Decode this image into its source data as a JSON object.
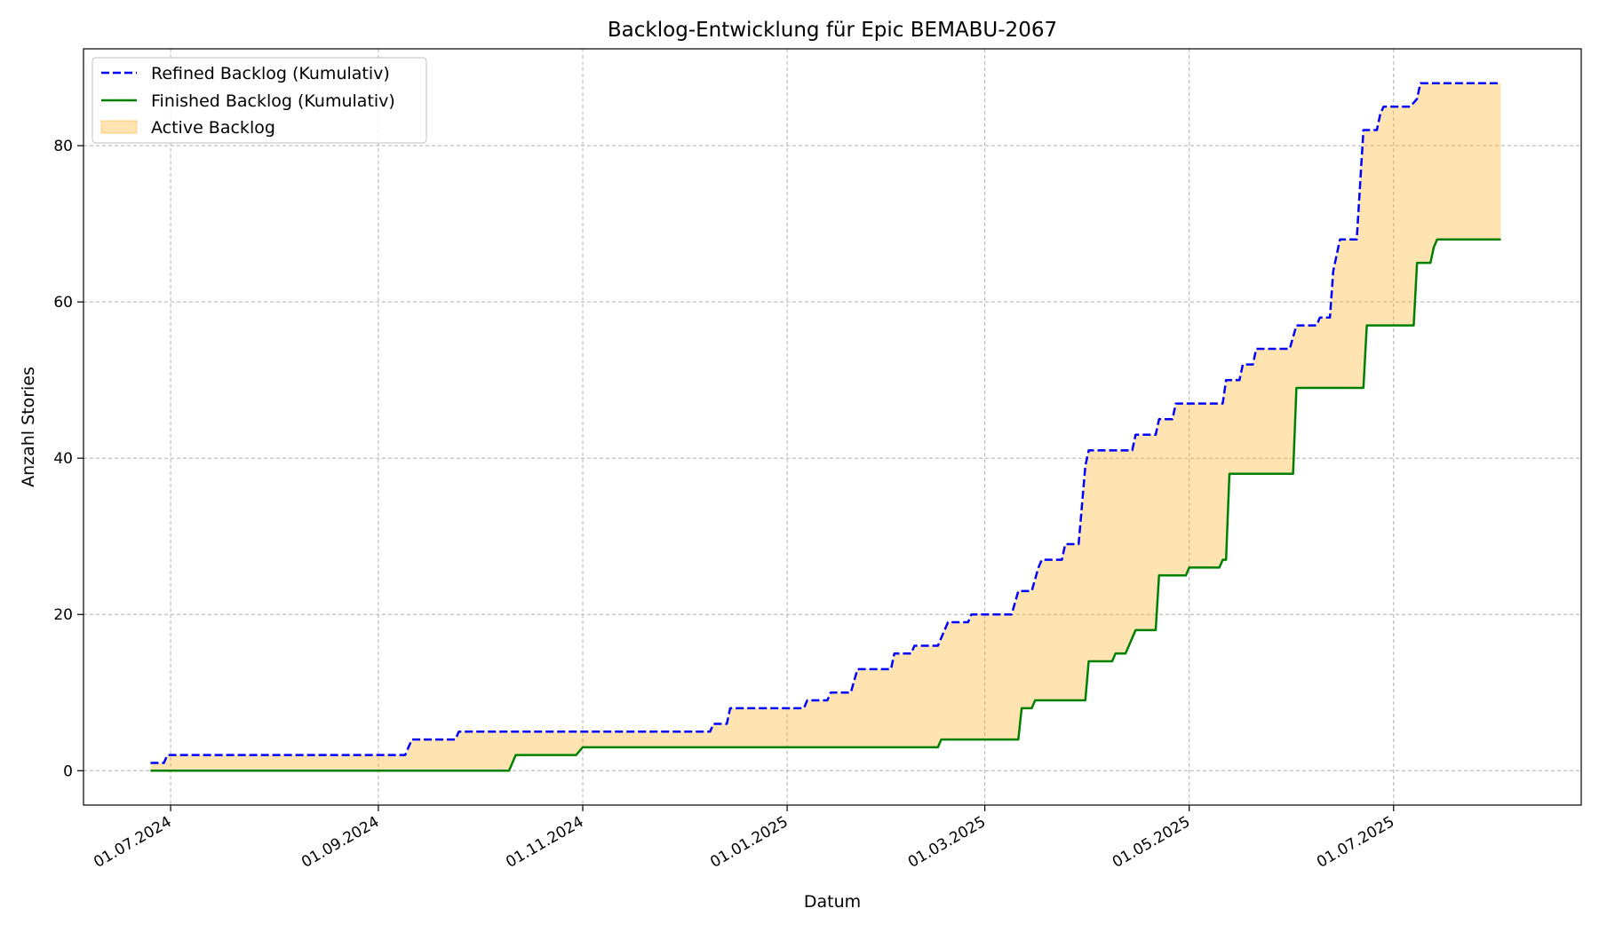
{
  "chart_data": {
    "type": "line",
    "title": "Backlog-Entwicklung für Epic BEMABU-2067",
    "xlabel": "Datum",
    "ylabel": "Anzahl Stories",
    "xlim": [
      "2024-06-05",
      "2025-08-26"
    ],
    "ylim": [
      -4.4,
      92.4
    ],
    "x_ticks": [
      {
        "date": "2024-07-01",
        "label": "01.07.2024"
      },
      {
        "date": "2024-09-01",
        "label": "01.09.2024"
      },
      {
        "date": "2024-11-01",
        "label": "01.11.2024"
      },
      {
        "date": "2025-01-01",
        "label": "01.01.2025"
      },
      {
        "date": "2025-03-01",
        "label": "01.03.2025"
      },
      {
        "date": "2025-05-01",
        "label": "01.05.2025"
      },
      {
        "date": "2025-07-01",
        "label": "01.07.2025"
      }
    ],
    "y_ticks": [
      0,
      20,
      40,
      60,
      80
    ],
    "grid": true,
    "legend_position": "top-left",
    "series": [
      {
        "name": "Refined Backlog (Kumulativ)",
        "color": "#0000ff",
        "style": "dashed",
        "points": [
          [
            "2024-06-25",
            1
          ],
          [
            "2024-06-29",
            1
          ],
          [
            "2024-06-30",
            2
          ],
          [
            "2024-09-09",
            2
          ],
          [
            "2024-09-11",
            4
          ],
          [
            "2024-09-24",
            4
          ],
          [
            "2024-09-25",
            5
          ],
          [
            "2024-12-09",
            5
          ],
          [
            "2024-12-10",
            6
          ],
          [
            "2024-12-14",
            6
          ],
          [
            "2024-12-15",
            8
          ],
          [
            "2025-01-06",
            8
          ],
          [
            "2025-01-07",
            9
          ],
          [
            "2025-01-13",
            9
          ],
          [
            "2025-01-14",
            10
          ],
          [
            "2025-01-20",
            10
          ],
          [
            "2025-01-22",
            13
          ],
          [
            "2025-02-01",
            13
          ],
          [
            "2025-02-02",
            15
          ],
          [
            "2025-02-07",
            15
          ],
          [
            "2025-02-08",
            16
          ],
          [
            "2025-02-15",
            16
          ],
          [
            "2025-02-17",
            18
          ],
          [
            "2025-02-18",
            19
          ],
          [
            "2025-02-24",
            19
          ],
          [
            "2025-02-25",
            20
          ],
          [
            "2025-03-09",
            20
          ],
          [
            "2025-03-11",
            23
          ],
          [
            "2025-03-15",
            23
          ],
          [
            "2025-03-17",
            26
          ],
          [
            "2025-03-18",
            27
          ],
          [
            "2025-03-24",
            27
          ],
          [
            "2025-03-25",
            29
          ],
          [
            "2025-03-29",
            29
          ],
          [
            "2025-03-31",
            39
          ],
          [
            "2025-04-01",
            41
          ],
          [
            "2025-04-14",
            41
          ],
          [
            "2025-04-15",
            43
          ],
          [
            "2025-04-21",
            43
          ],
          [
            "2025-04-22",
            45
          ],
          [
            "2025-04-26",
            45
          ],
          [
            "2025-04-27",
            47
          ],
          [
            "2025-05-11",
            47
          ],
          [
            "2025-05-12",
            50
          ],
          [
            "2025-05-16",
            50
          ],
          [
            "2025-05-17",
            52
          ],
          [
            "2025-05-20",
            52
          ],
          [
            "2025-05-21",
            54
          ],
          [
            "2025-05-31",
            54
          ],
          [
            "2025-06-02",
            57
          ],
          [
            "2025-06-08",
            57
          ],
          [
            "2025-06-09",
            58
          ],
          [
            "2025-06-12",
            58
          ],
          [
            "2025-06-13",
            64
          ],
          [
            "2025-06-15",
            68
          ],
          [
            "2025-06-20",
            68
          ],
          [
            "2025-06-22",
            82
          ],
          [
            "2025-06-26",
            82
          ],
          [
            "2025-06-27",
            84
          ],
          [
            "2025-06-28",
            85
          ],
          [
            "2025-07-06",
            85
          ],
          [
            "2025-07-08",
            86
          ],
          [
            "2025-07-09",
            88
          ],
          [
            "2025-08-02",
            88
          ]
        ]
      },
      {
        "name": "Finished Backlog (Kumulativ)",
        "color": "#008000",
        "style": "solid",
        "points": [
          [
            "2024-06-25",
            0
          ],
          [
            "2024-10-10",
            0
          ],
          [
            "2024-10-12",
            2
          ],
          [
            "2024-10-30",
            2
          ],
          [
            "2024-11-01",
            3
          ],
          [
            "2025-02-15",
            3
          ],
          [
            "2025-02-16",
            4
          ],
          [
            "2025-03-11",
            4
          ],
          [
            "2025-03-12",
            8
          ],
          [
            "2025-03-15",
            8
          ],
          [
            "2025-03-16",
            9
          ],
          [
            "2025-03-31",
            9
          ],
          [
            "2025-04-01",
            14
          ],
          [
            "2025-04-08",
            14
          ],
          [
            "2025-04-09",
            15
          ],
          [
            "2025-04-12",
            15
          ],
          [
            "2025-04-15",
            18
          ],
          [
            "2025-04-21",
            18
          ],
          [
            "2025-04-22",
            25
          ],
          [
            "2025-04-30",
            25
          ],
          [
            "2025-05-01",
            26
          ],
          [
            "2025-05-10",
            26
          ],
          [
            "2025-05-11",
            27
          ],
          [
            "2025-05-12",
            27
          ],
          [
            "2025-05-13",
            38
          ],
          [
            "2025-06-01",
            38
          ],
          [
            "2025-06-02",
            49
          ],
          [
            "2025-06-22",
            49
          ],
          [
            "2025-06-23",
            57
          ],
          [
            "2025-07-07",
            57
          ],
          [
            "2025-07-08",
            65
          ],
          [
            "2025-07-12",
            65
          ],
          [
            "2025-07-13",
            67
          ],
          [
            "2025-07-14",
            68
          ],
          [
            "2025-08-02",
            68
          ]
        ]
      }
    ],
    "area": {
      "name": "Active Backlog",
      "fill": "#ffa500",
      "opacity": 0.3,
      "between": [
        "Refined Backlog (Kumulativ)",
        "Finished Backlog (Kumulativ)"
      ]
    }
  }
}
